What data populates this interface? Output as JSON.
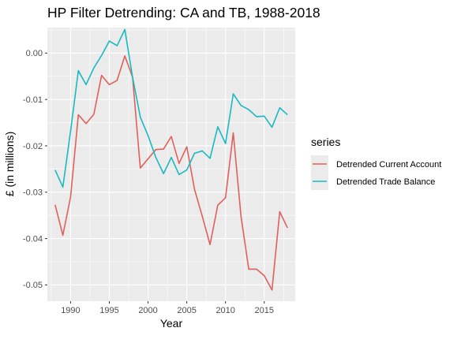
{
  "chart_data": {
    "type": "line",
    "title": "HP Filter Detrending: CA and TB, 1988-2018",
    "xlabel": "Year",
    "ylabel": "£ (in millions)",
    "xlim": [
      1987,
      2019
    ],
    "ylim": [
      -0.0535,
      0.0055
    ],
    "x_ticks": [
      1990,
      1995,
      2000,
      2005,
      2010,
      2015
    ],
    "x_tick_labels": [
      "1990",
      "1995",
      "2000",
      "2005",
      "2010",
      "2015"
    ],
    "y_ticks": [
      0.0,
      -0.01,
      -0.02,
      -0.03,
      -0.04,
      -0.05
    ],
    "y_tick_labels": [
      "0.00",
      "-0.01",
      "-0.02",
      "-0.03",
      "-0.04",
      "-0.05"
    ],
    "grid": true,
    "legend": {
      "title": "series",
      "position": "right"
    },
    "x": [
      1988,
      1989,
      1990,
      1991,
      1992,
      1993,
      1994,
      1995,
      1996,
      1997,
      1998,
      1999,
      2000,
      2001,
      2002,
      2003,
      2004,
      2005,
      2006,
      2007,
      2008,
      2009,
      2010,
      2011,
      2012,
      2013,
      2014,
      2015,
      2016,
      2017,
      2018
    ],
    "series": [
      {
        "name": "Detrended Current Account",
        "color": "#e0605b",
        "values": [
          -0.0327,
          -0.0393,
          -0.031,
          -0.0133,
          -0.0152,
          -0.0132,
          -0.0048,
          -0.0068,
          -0.0059,
          -0.0006,
          -0.0052,
          -0.0248,
          -0.0228,
          -0.0208,
          -0.0207,
          -0.018,
          -0.0238,
          -0.0202,
          -0.0294,
          -0.0352,
          -0.0413,
          -0.0328,
          -0.0312,
          -0.0172,
          -0.0352,
          -0.0466,
          -0.0466,
          -0.048,
          -0.0511,
          -0.0342,
          -0.0377
        ]
      },
      {
        "name": "Detrended Trade Balance",
        "color": "#19b9c1",
        "values": [
          -0.0252,
          -0.0289,
          -0.0168,
          -0.0038,
          -0.0068,
          -0.0032,
          -0.0005,
          0.0026,
          0.0016,
          0.0051,
          -0.0052,
          -0.0138,
          -0.0178,
          -0.0225,
          -0.026,
          -0.0225,
          -0.0262,
          -0.0252,
          -0.0216,
          -0.0211,
          -0.0227,
          -0.0159,
          -0.0195,
          -0.0088,
          -0.0113,
          -0.0122,
          -0.0137,
          -0.0136,
          -0.016,
          -0.0118,
          -0.0133
        ]
      }
    ]
  },
  "colors": {
    "panel_background": "#ebebeb",
    "grid_major": "#ffffff",
    "axis_text": "#4d4d4d",
    "title_text": "#000000"
  }
}
